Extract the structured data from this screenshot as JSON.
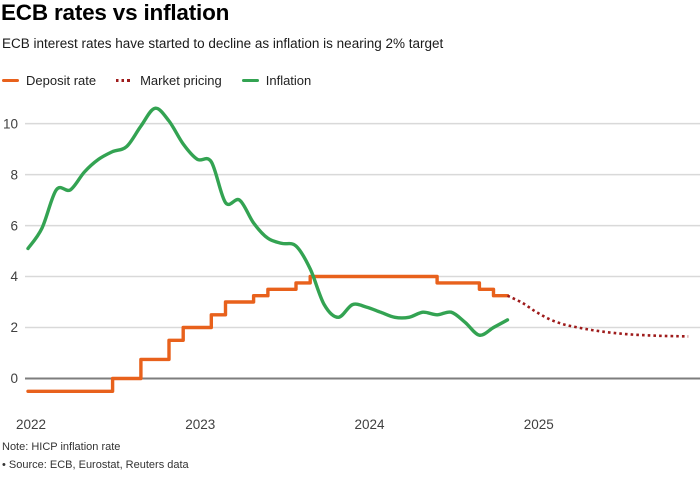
{
  "header": {
    "title": "ECB rates vs inflation",
    "subtitle": "ECB interest rates have started to decline as inflation is nearing 2% target"
  },
  "legend": [
    {
      "label": "Deposit rate",
      "color": "#E8611C",
      "style": "solid"
    },
    {
      "label": "Market pricing",
      "color": "#9E1B1B",
      "style": "dotted"
    },
    {
      "label": "Inflation",
      "color": "#33A352",
      "style": "solid"
    }
  ],
  "chart_data": {
    "type": "line",
    "title": "ECB rates vs inflation",
    "xlabel": "",
    "ylabel": "",
    "xlim": [
      2022,
      2025.97
    ],
    "ylim": [
      -1,
      11.2
    ],
    "grid": "horizontal",
    "legend_position": "top",
    "axis": {
      "grid_color": "#d9d9d9",
      "zero_line_color": "#7d7d7d",
      "tick_color": "#404040",
      "y_ticks": [
        {
          "value": 0,
          "label": "0"
        },
        {
          "value": 2,
          "label": "2"
        },
        {
          "value": 4,
          "label": "4"
        },
        {
          "value": 6,
          "label": "6"
        },
        {
          "value": 8,
          "label": "8"
        },
        {
          "value": 10,
          "label": "10"
        }
      ],
      "x_ticks": [
        {
          "t": 2022,
          "label": "2022"
        },
        {
          "t": 2023,
          "label": "2023"
        },
        {
          "t": 2024,
          "label": "2024"
        },
        {
          "t": 2025,
          "label": "2025"
        }
      ]
    },
    "series": [
      {
        "id": "deposit-rate",
        "name": "Deposit rate",
        "color": "#E8611C",
        "line": "step",
        "style": "solid",
        "points": [
          [
            2022.0,
            -0.5
          ],
          [
            2022.5,
            0.0
          ],
          [
            2022.667,
            0.75
          ],
          [
            2022.833,
            1.5
          ],
          [
            2022.917,
            2.0
          ],
          [
            2023.083,
            2.5
          ],
          [
            2023.167,
            3.0
          ],
          [
            2023.333,
            3.25
          ],
          [
            2023.417,
            3.5
          ],
          [
            2023.583,
            3.75
          ],
          [
            2023.667,
            4.0
          ],
          [
            2024.417,
            3.75
          ],
          [
            2024.667,
            3.5
          ],
          [
            2024.75,
            3.25
          ],
          [
            2024.833,
            3.25
          ]
        ]
      },
      {
        "id": "market-pricing",
        "name": "Market pricing",
        "color": "#9E1B1B",
        "line": "smooth",
        "style": "dotted",
        "points": [
          [
            2024.833,
            3.25
          ],
          [
            2024.917,
            2.98
          ],
          [
            2025.0,
            2.62
          ],
          [
            2025.083,
            2.32
          ],
          [
            2025.167,
            2.12
          ],
          [
            2025.25,
            2.0
          ],
          [
            2025.333,
            1.9
          ],
          [
            2025.417,
            1.82
          ],
          [
            2025.5,
            1.76
          ],
          [
            2025.583,
            1.72
          ],
          [
            2025.667,
            1.69
          ],
          [
            2025.75,
            1.67
          ],
          [
            2025.833,
            1.66
          ],
          [
            2025.9,
            1.65
          ]
        ]
      },
      {
        "id": "inflation",
        "name": "Inflation",
        "color": "#33A352",
        "line": "smooth",
        "style": "solid",
        "points": [
          [
            2022.0,
            5.1
          ],
          [
            2022.083,
            5.9
          ],
          [
            2022.167,
            7.4
          ],
          [
            2022.25,
            7.4
          ],
          [
            2022.333,
            8.1
          ],
          [
            2022.417,
            8.6
          ],
          [
            2022.5,
            8.9
          ],
          [
            2022.583,
            9.1
          ],
          [
            2022.667,
            9.9
          ],
          [
            2022.75,
            10.6
          ],
          [
            2022.833,
            10.1
          ],
          [
            2022.917,
            9.2
          ],
          [
            2023.0,
            8.6
          ],
          [
            2023.083,
            8.5
          ],
          [
            2023.167,
            6.9
          ],
          [
            2023.25,
            7.0
          ],
          [
            2023.333,
            6.1
          ],
          [
            2023.417,
            5.5
          ],
          [
            2023.5,
            5.3
          ],
          [
            2023.583,
            5.2
          ],
          [
            2023.667,
            4.3
          ],
          [
            2023.75,
            2.9
          ],
          [
            2023.833,
            2.4
          ],
          [
            2023.917,
            2.9
          ],
          [
            2024.0,
            2.8
          ],
          [
            2024.083,
            2.6
          ],
          [
            2024.167,
            2.4
          ],
          [
            2024.25,
            2.4
          ],
          [
            2024.333,
            2.6
          ],
          [
            2024.417,
            2.5
          ],
          [
            2024.5,
            2.6
          ],
          [
            2024.583,
            2.2
          ],
          [
            2024.667,
            1.7
          ],
          [
            2024.75,
            2.0
          ],
          [
            2024.833,
            2.3
          ]
        ]
      }
    ]
  },
  "footer": {
    "note": "Note: HICP inflation rate",
    "source": "• Source: ECB, Eurostat, Reuters data"
  }
}
